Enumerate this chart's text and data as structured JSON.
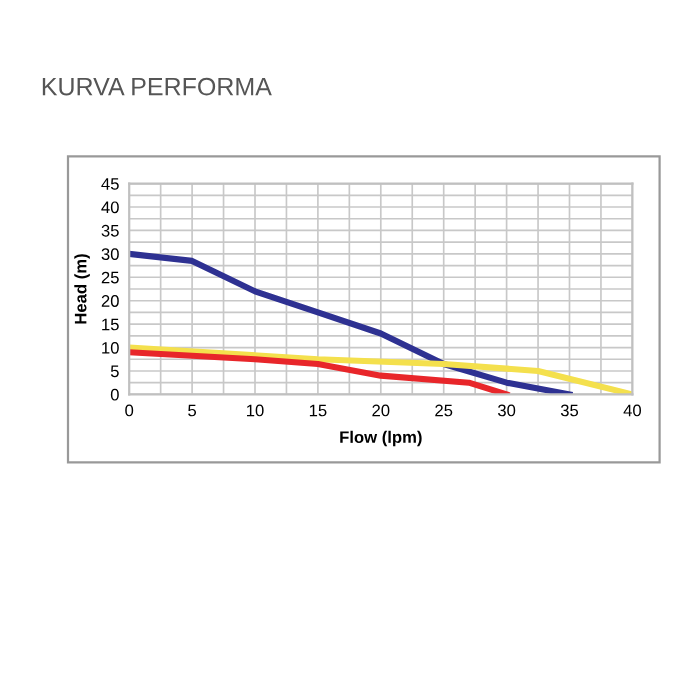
{
  "chart_data": {
    "type": "line",
    "title": "KURVA PERFORMA",
    "xlabel": "Flow (lpm)",
    "ylabel": "Head (m)",
    "xlim": [
      0,
      40
    ],
    "xticks": [
      0,
      5,
      10,
      15,
      20,
      25,
      30,
      35,
      40
    ],
    "ylim": [
      0,
      45
    ],
    "yticks": [
      0,
      5,
      10,
      15,
      20,
      25,
      30,
      35,
      40,
      45
    ],
    "grid": true,
    "marker": "none",
    "line_style": "solid",
    "series": [
      {
        "color": "#2e3192",
        "x": [
          0,
          5,
          10,
          15,
          20,
          25,
          30,
          35
        ],
        "values": [
          30,
          28.5,
          22,
          17.5,
          13,
          6.5,
          2.5,
          0
        ]
      },
      {
        "color": "#f4e04d",
        "x": [
          0,
          15,
          25,
          32.5,
          40
        ],
        "values": [
          10,
          7.5,
          6.5,
          5,
          0
        ]
      },
      {
        "color": "#e8262a",
        "x": [
          0,
          10,
          15,
          20,
          27,
          30
        ],
        "values": [
          9,
          7.5,
          6.5,
          4,
          2.5,
          0
        ]
      }
    ]
  }
}
